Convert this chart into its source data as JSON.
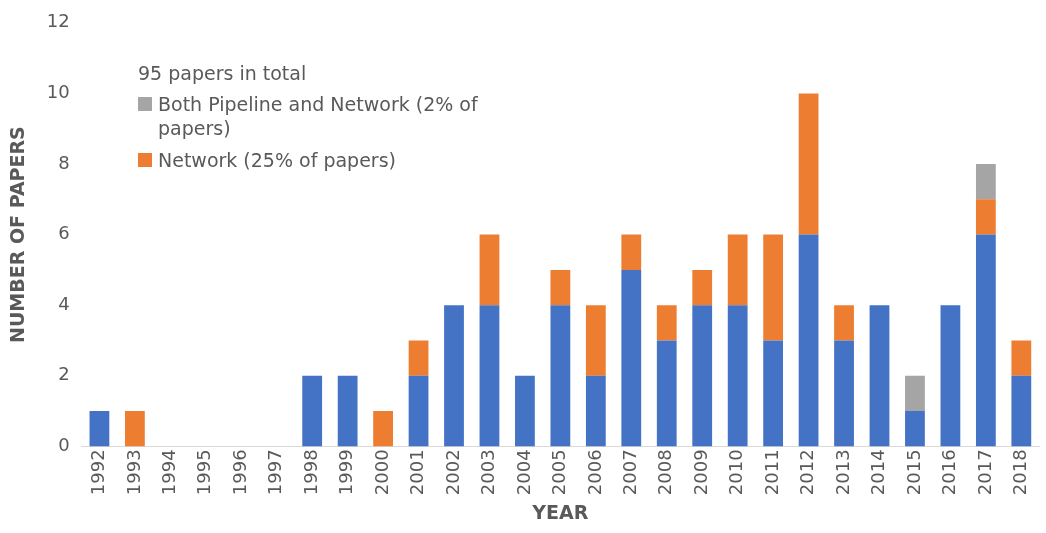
{
  "chart_data": {
    "type": "bar",
    "stacked": true,
    "xlabel": "YEAR",
    "ylabel": "NUMBER OF PAPERS",
    "legend_title": "95 papers in total",
    "legend": "top left",
    "grid": false,
    "categories": [
      "1992",
      "1993",
      "1994",
      "1995",
      "1996",
      "1997",
      "1998",
      "1999",
      "2000",
      "2001",
      "2002",
      "2003",
      "2004",
      "2005",
      "2006",
      "2007",
      "2008",
      "2009",
      "2010",
      "2011",
      "2012",
      "2013",
      "2014",
      "2015",
      "2016",
      "2017",
      "2018"
    ],
    "ylim": [
      0,
      12
    ],
    "yticks": [
      0,
      2,
      4,
      6,
      8,
      10,
      12
    ],
    "series": [
      {
        "color": "#4472c4",
        "values": [
          1,
          0,
          0,
          0,
          0,
          0,
          2,
          2,
          0,
          2,
          4,
          4,
          2,
          4,
          2,
          5,
          3,
          4,
          4,
          3,
          6,
          3,
          4,
          1,
          4,
          6,
          2
        ]
      },
      {
        "name": "Network (25% of papers)",
        "color": "#ed7d31",
        "values": [
          0,
          1,
          0,
          0,
          0,
          0,
          0,
          0,
          1,
          1,
          0,
          2,
          0,
          1,
          2,
          1,
          1,
          1,
          2,
          3,
          4,
          1,
          0,
          0,
          0,
          1,
          1
        ]
      },
      {
        "name": "Both Pipeline and Network (2% of papers)",
        "color": "#a5a5a5",
        "values": [
          0,
          0,
          0,
          0,
          0,
          0,
          0,
          0,
          0,
          0,
          0,
          0,
          0,
          0,
          0,
          0,
          0,
          0,
          0,
          0,
          0,
          0,
          0,
          1,
          0,
          1,
          0
        ]
      }
    ]
  }
}
